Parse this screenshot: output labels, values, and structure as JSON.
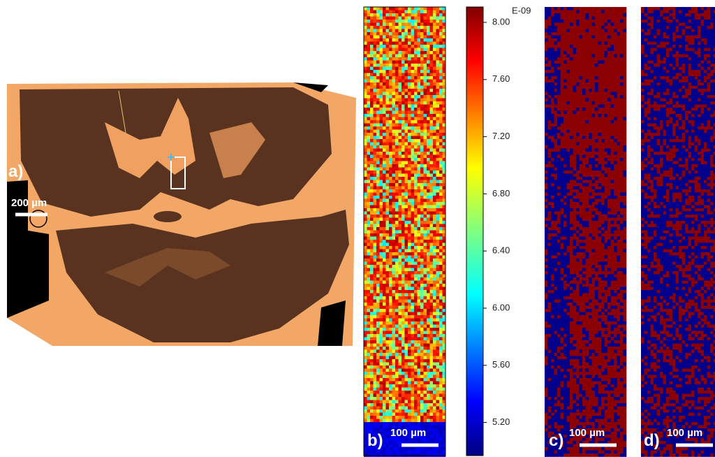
{
  "panels": {
    "a": {
      "label": "a)",
      "scale_bar": "200 µm"
    },
    "b": {
      "label": "b)",
      "scale_bar": "100 µm"
    },
    "colorbar": {
      "exponent": "E-09",
      "ticks": [
        "8.00",
        "7.60",
        "7.20",
        "6.80",
        "6.40",
        "6.00",
        "5.60",
        "5.20"
      ]
    },
    "c": {
      "label": "c)",
      "scale_bar": "100 µm"
    },
    "d": {
      "label": "d)",
      "scale_bar": "100 µm"
    }
  }
}
